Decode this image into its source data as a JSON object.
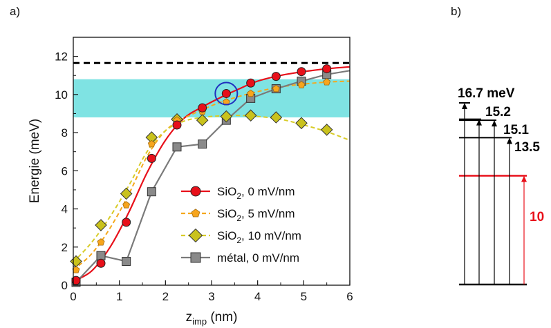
{
  "panel_labels": {
    "a": "a)",
    "b": "b)"
  },
  "chart_data": [
    {
      "type": "line",
      "xlabel_main": "z",
      "xlabel_sub": "imp",
      "xlabel_unit": " (nm)",
      "ylabel": "Energie (meV)",
      "xlim": [
        0,
        6
      ],
      "ylim": [
        0,
        13
      ],
      "xticks": [
        0,
        1,
        2,
        3,
        4,
        5,
        6
      ],
      "yticks": [
        0,
        2,
        4,
        6,
        8,
        10,
        12
      ],
      "grid": false,
      "legend_position": "lower-right",
      "reference_line": {
        "y": 11.65,
        "style": "dashed",
        "color": "#000000"
      },
      "shaded_band": {
        "y_from": 8.8,
        "y_to": 10.8,
        "color": "#7fe3e3"
      },
      "highlight_circle": {
        "x": 3.32,
        "y": 10.05,
        "color": "#1f2fbf"
      },
      "series": [
        {
          "legend_main": "SiO",
          "legend_sub": "2",
          "legend_rest": ", 0 mV/nm",
          "color": "#e8101a",
          "marker": "circle",
          "marker_fill": "#e8101a",
          "line_style": "solid",
          "x": [
            0.06,
            0.6,
            1.15,
            1.7,
            2.25,
            2.8,
            3.32,
            3.85,
            4.4,
            4.95,
            5.5
          ],
          "y": [
            0.25,
            1.15,
            3.3,
            6.65,
            8.4,
            9.3,
            10.05,
            10.6,
            10.95,
            11.2,
            11.35
          ],
          "curve_x": [
            0.0,
            0.4,
            0.8,
            1.2,
            1.6,
            2.0,
            2.4,
            2.8,
            3.2,
            3.6,
            4.0,
            4.5,
            5.0,
            5.5,
            6.0
          ],
          "curve_y": [
            0.2,
            0.75,
            2.0,
            3.8,
            5.9,
            7.6,
            8.75,
            9.35,
            9.85,
            10.3,
            10.7,
            11.0,
            11.2,
            11.35,
            11.45
          ]
        },
        {
          "legend_main": "SiO",
          "legend_sub": "2",
          "legend_rest": ", 5 mV/nm",
          "color": "#f5a81c",
          "marker": "pentagon",
          "marker_fill": "#f7a51c",
          "line_style": "dashed",
          "x": [
            0.06,
            0.6,
            1.15,
            1.7,
            2.25,
            2.8,
            3.32,
            3.85,
            4.4,
            4.95,
            5.5
          ],
          "y": [
            0.8,
            2.25,
            4.2,
            7.4,
            8.65,
            9.1,
            9.6,
            10.05,
            10.3,
            10.5,
            10.65
          ],
          "curve_x": [
            0.0,
            0.4,
            0.8,
            1.2,
            1.6,
            2.0,
            2.4,
            2.8,
            3.2,
            3.6,
            4.0,
            4.5,
            5.0,
            5.5,
            6.0
          ],
          "curve_y": [
            0.8,
            1.65,
            3.0,
            4.75,
            6.75,
            8.1,
            8.75,
            9.2,
            9.6,
            9.9,
            10.15,
            10.4,
            10.55,
            10.65,
            10.7
          ]
        },
        {
          "legend_main": "SiO",
          "legend_sub": "2",
          "legend_rest": ", 10 mV/nm",
          "color": "#d8cc28",
          "marker": "diamond",
          "marker_fill": "#c9c21d",
          "line_style": "dashed",
          "x": [
            0.06,
            0.6,
            1.15,
            1.7,
            2.25,
            2.8,
            3.32,
            3.85,
            4.4,
            4.95,
            5.5
          ],
          "y": [
            1.25,
            3.15,
            4.8,
            7.75,
            8.7,
            8.65,
            8.85,
            8.9,
            8.8,
            8.5,
            8.15
          ],
          "curve_x": [
            0.0,
            0.4,
            0.8,
            1.2,
            1.6,
            2.0,
            2.4,
            2.8,
            3.2,
            3.6,
            4.0,
            4.5,
            5.0,
            5.5,
            6.0
          ],
          "curve_y": [
            1.2,
            2.25,
            3.6,
            5.2,
            7.0,
            8.1,
            8.6,
            8.8,
            8.88,
            8.9,
            8.85,
            8.7,
            8.4,
            8.05,
            7.6
          ]
        },
        {
          "legend_main": "métal",
          "legend_sub": "",
          "legend_rest": ", 0 mV/nm",
          "color": "#7a7a7a",
          "marker": "square",
          "marker_fill": "#8a8a8a",
          "line_style": "solid",
          "x": [
            0.06,
            0.6,
            1.15,
            1.7,
            2.25,
            2.8,
            3.32,
            3.85,
            4.4,
            4.95,
            5.5
          ],
          "y": [
            0.15,
            1.55,
            1.25,
            4.9,
            7.25,
            7.4,
            8.65,
            9.8,
            10.3,
            10.7,
            11.05
          ],
          "curve_x": [
            0.06,
            0.6,
            1.15,
            1.7,
            2.25,
            2.8,
            3.32,
            3.85,
            4.4,
            4.95,
            5.5,
            6.0
          ],
          "curve_y": [
            0.15,
            1.55,
            1.25,
            4.9,
            7.25,
            7.4,
            8.65,
            9.8,
            10.3,
            10.7,
            11.05,
            11.25
          ]
        }
      ]
    },
    {
      "type": "diagram",
      "description_ignored": false,
      "levels": [
        {
          "energy": 0,
          "color": "#000000",
          "label": ""
        },
        {
          "energy": 10,
          "color": "#e8101a",
          "label": "10",
          "label_color": "#e8101a"
        },
        {
          "energy": 13.5,
          "color": "#000000",
          "label": "13.5",
          "label_color": "#000000"
        },
        {
          "energy": 15.1,
          "color": "#000000",
          "label": "15.1",
          "label_color": "#000000"
        },
        {
          "energy": 15.2,
          "color": "#000000",
          "label": "15.2",
          "label_color": "#000000"
        },
        {
          "energy": 16.7,
          "color": "#000000",
          "label": "16.7 meV",
          "label_color": "#000000"
        }
      ]
    }
  ]
}
